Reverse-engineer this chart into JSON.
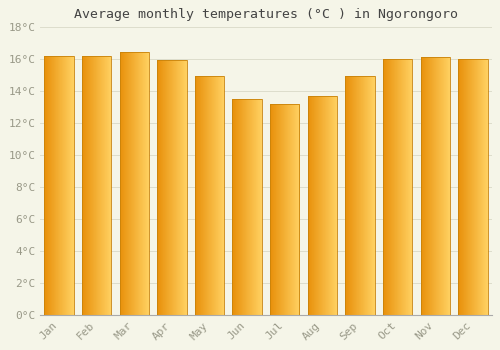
{
  "months": [
    "Jan",
    "Feb",
    "Mar",
    "Apr",
    "May",
    "Jun",
    "Jul",
    "Aug",
    "Sep",
    "Oct",
    "Nov",
    "Dec"
  ],
  "temperatures": [
    16.2,
    16.2,
    16.4,
    15.9,
    14.9,
    13.5,
    13.2,
    13.7,
    14.9,
    16.0,
    16.1,
    16.0
  ],
  "title": "Average monthly temperatures (°C ) in Ngorongoro",
  "ylim": [
    0,
    18
  ],
  "yticks": [
    0,
    2,
    4,
    6,
    8,
    10,
    12,
    14,
    16,
    18
  ],
  "ytick_labels": [
    "0°C",
    "2°C",
    "4°C",
    "6°C",
    "8°C",
    "10°C",
    "12°C",
    "14°C",
    "16°C",
    "18°C"
  ],
  "bar_color_left": "#E8900A",
  "bar_color_right": "#FFD060",
  "bar_edge_color": "#C8820A",
  "background_color": "#F5F5E8",
  "grid_color": "#DDDDCC",
  "title_color": "#444444",
  "tick_label_color": "#999988",
  "title_fontsize": 9.5,
  "tick_fontsize": 8,
  "bar_width": 0.78,
  "n_grad": 80
}
